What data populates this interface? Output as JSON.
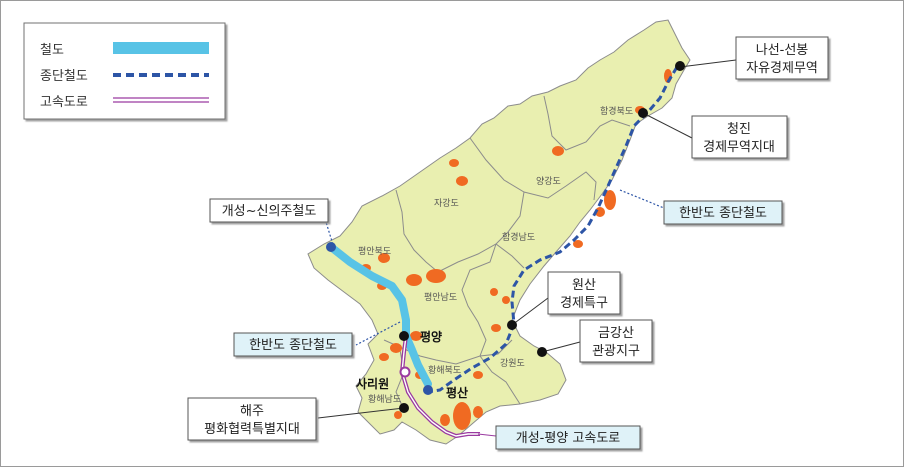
{
  "legend": {
    "items": [
      {
        "label": "철도",
        "line": "rail-icon"
      },
      {
        "label": "종단철도",
        "line": "dashed-rail-icon"
      },
      {
        "label": "고속도로",
        "line": "double-line-icon"
      }
    ]
  },
  "colors": {
    "land": "#e9efb0",
    "border": "#8c8c8c",
    "rail": "#58c3e6",
    "trunk": "#2d55a6",
    "highway": "#9a3aa0",
    "urban": "#f06a22",
    "callout_plain_bg": "#ffffff",
    "callout_blue_bg": "#dff2f8"
  },
  "provinces": {
    "hamgyeong_north": "함경북도",
    "yanggang": "양강도",
    "jagang": "자강도",
    "pyeongan_north": "평안북도",
    "hamgyeong_south": "함경남도",
    "pyeongan_south": "평안남도",
    "hwanghae_north": "황해북도",
    "hwanghae_south": "황해남도",
    "gangwon": "강원도"
  },
  "cities": {
    "pyongyang": "평양",
    "sariwon": "사리원",
    "pyeongsan": "평산"
  },
  "callouts": {
    "rason": [
      "나선-선봉",
      "자유경제무역"
    ],
    "chongjin": [
      "청진",
      "경제무역지대"
    ],
    "trunk_east": "한반도 종단철도",
    "gaeseong_sinuiju": "개성~신의주철도",
    "wonsan": [
      "원산",
      "경제특구"
    ],
    "trunk_west": "한반도 종단철도",
    "geumgangsan": [
      "금강산",
      "관광지구"
    ],
    "haeju": [
      "해주",
      "평화협력특별지대"
    ],
    "expressway": "개성-평양 고속도로"
  }
}
